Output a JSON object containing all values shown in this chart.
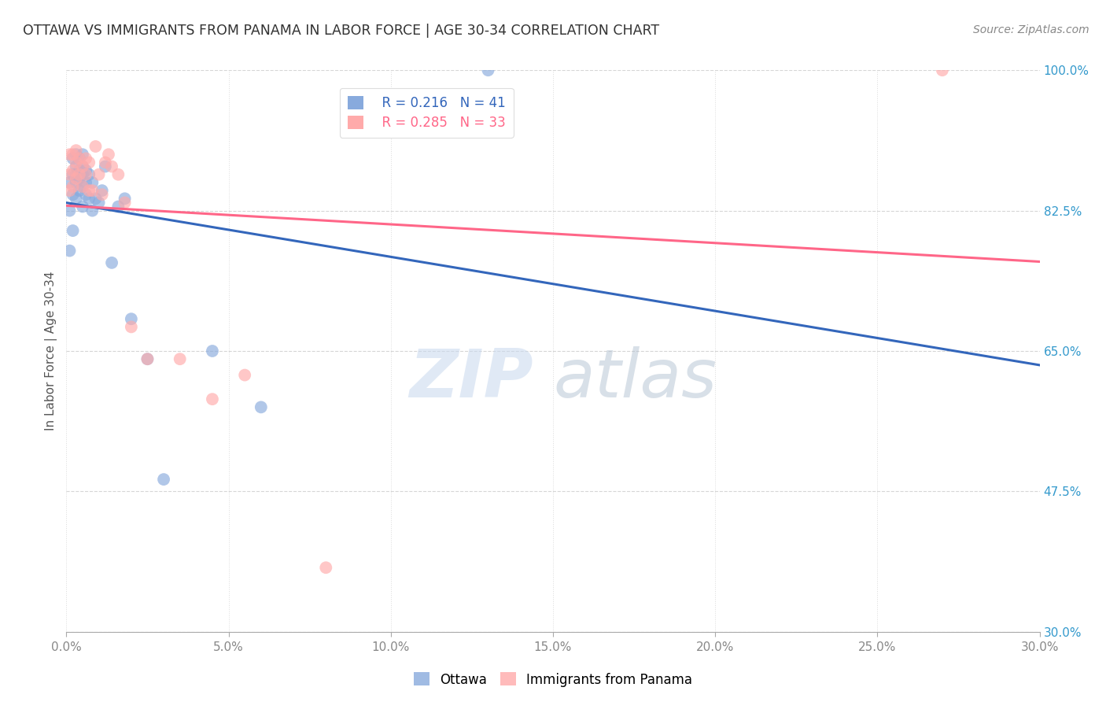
{
  "title": "OTTAWA VS IMMIGRANTS FROM PANAMA IN LABOR FORCE | AGE 30-34 CORRELATION CHART",
  "source": "Source: ZipAtlas.com",
  "ylabel": "In Labor Force | Age 30-34",
  "xlim": [
    0.0,
    0.3
  ],
  "ylim": [
    0.3,
    1.0
  ],
  "xticks": [
    0.0,
    0.05,
    0.1,
    0.15,
    0.2,
    0.25,
    0.3
  ],
  "xtick_labels": [
    "0.0%",
    "5.0%",
    "10.0%",
    "15.0%",
    "20.0%",
    "25.0%",
    "30.0%"
  ],
  "yticks_right": [
    1.0,
    0.825,
    0.65,
    0.475,
    0.3
  ],
  "ytick_labels_right": [
    "100.0%",
    "82.5%",
    "65.0%",
    "47.5%",
    "30.0%"
  ],
  "ottawa_color": "#88AADD",
  "panama_color": "#FFAAAA",
  "ottawa_line_color": "#3366BB",
  "panama_line_color": "#FF6688",
  "ottawa_R": 0.216,
  "ottawa_N": 41,
  "panama_R": 0.285,
  "panama_N": 33,
  "ottawa_x": [
    0.001,
    0.001,
    0.001,
    0.002,
    0.002,
    0.002,
    0.002,
    0.003,
    0.003,
    0.003,
    0.003,
    0.003,
    0.004,
    0.004,
    0.004,
    0.004,
    0.005,
    0.005,
    0.005,
    0.005,
    0.005,
    0.006,
    0.006,
    0.006,
    0.007,
    0.007,
    0.008,
    0.008,
    0.009,
    0.01,
    0.011,
    0.012,
    0.014,
    0.016,
    0.018,
    0.02,
    0.025,
    0.03,
    0.045,
    0.06,
    0.13
  ],
  "ottawa_y": [
    0.775,
    0.825,
    0.86,
    0.8,
    0.845,
    0.87,
    0.89,
    0.84,
    0.86,
    0.87,
    0.88,
    0.895,
    0.85,
    0.865,
    0.875,
    0.89,
    0.83,
    0.855,
    0.87,
    0.88,
    0.895,
    0.845,
    0.86,
    0.875,
    0.84,
    0.87,
    0.825,
    0.86,
    0.84,
    0.835,
    0.85,
    0.88,
    0.76,
    0.83,
    0.84,
    0.69,
    0.64,
    0.49,
    0.65,
    0.58,
    1.0
  ],
  "panama_x": [
    0.001,
    0.001,
    0.001,
    0.002,
    0.002,
    0.002,
    0.003,
    0.003,
    0.003,
    0.004,
    0.004,
    0.005,
    0.005,
    0.006,
    0.006,
    0.007,
    0.007,
    0.008,
    0.009,
    0.01,
    0.011,
    0.012,
    0.013,
    0.014,
    0.016,
    0.018,
    0.02,
    0.025,
    0.035,
    0.045,
    0.055,
    0.08,
    0.27
  ],
  "panama_y": [
    0.85,
    0.87,
    0.895,
    0.855,
    0.875,
    0.895,
    0.865,
    0.885,
    0.9,
    0.87,
    0.89,
    0.855,
    0.88,
    0.87,
    0.89,
    0.85,
    0.885,
    0.85,
    0.905,
    0.87,
    0.845,
    0.885,
    0.895,
    0.88,
    0.87,
    0.835,
    0.68,
    0.64,
    0.64,
    0.59,
    0.62,
    0.38,
    1.0
  ],
  "watermark_zip": "ZIP",
  "watermark_atlas": "atlas",
  "background_color": "#ffffff",
  "grid_color": "#cccccc"
}
